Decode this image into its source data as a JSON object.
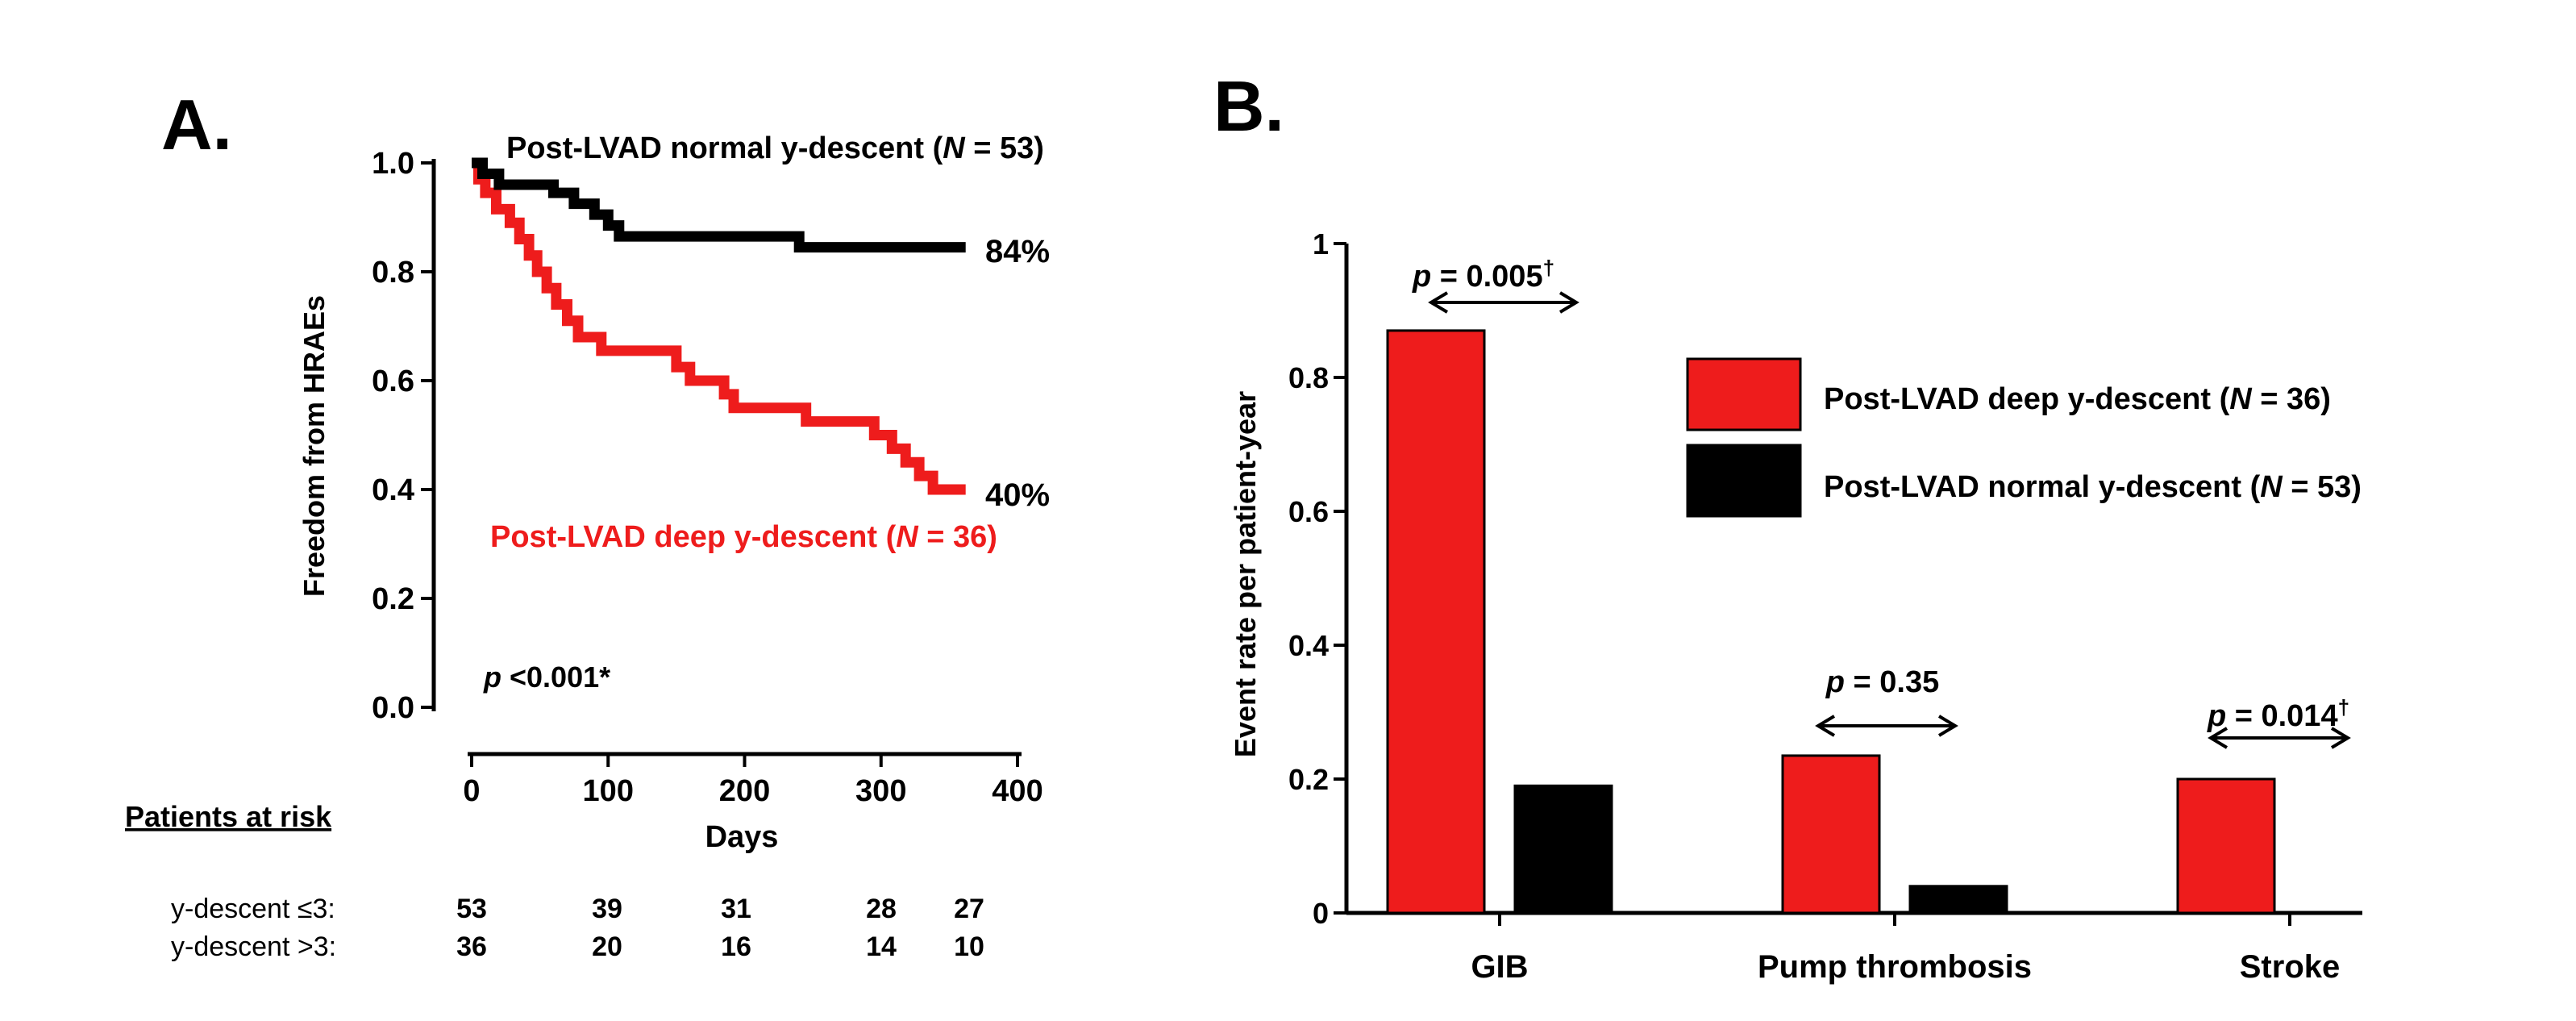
{
  "colors": {
    "deep": "#ee1c1c",
    "normal": "#000000",
    "axis": "#000000"
  },
  "panels": {
    "a": {
      "label": "A.",
      "normal_label": {
        "prefix": "Post-LVAD normal y-descent (",
        "italic": "N",
        "suffix": " = 53)"
      },
      "deep_label": {
        "prefix": "Post-LVAD deep y-descent (",
        "italic": "N",
        "suffix": " = 36)"
      },
      "pvalue": {
        "italic": "p",
        "rest": " <0.001*"
      },
      "risk_title": "Patients at risk",
      "risk_rows": [
        {
          "label": "y-descent ≤3:",
          "values": [
            "53",
            "39",
            "31",
            "28",
            "27"
          ]
        },
        {
          "label": "y-descent >3:",
          "values": [
            "36",
            "20",
            "16",
            "14",
            "10"
          ]
        }
      ]
    },
    "b": {
      "label": "B.",
      "legend": [
        {
          "prefix": "Post-LVAD deep y-descent (",
          "italic": "N",
          "suffix": " = 36)",
          "color": "#ee1c1c"
        },
        {
          "prefix": "Post-LVAD normal y-descent (",
          "italic": "N",
          "suffix": " = 53)",
          "color": "#000000"
        }
      ],
      "pvalues": [
        {
          "italic": "p",
          "rest": " = 0.005",
          "dagger": "†"
        },
        {
          "italic": "p",
          "rest": " = 0.35",
          "dagger": ""
        },
        {
          "italic": "p",
          "rest": " = 0.014",
          "dagger": "†"
        }
      ]
    }
  },
  "chart_data": [
    {
      "type": "line",
      "panel": "A",
      "title": "",
      "xlabel": "Days",
      "ylabel": "Freedom from HRAEs",
      "xlim": [
        0,
        400
      ],
      "ylim": [
        0,
        1.0
      ],
      "xticks": [
        "0",
        "100",
        "200",
        "300",
        "400"
      ],
      "yticks": [
        "0.0",
        "0.2",
        "0.4",
        "0.6",
        "0.8",
        "1.0"
      ],
      "grid": false,
      "series": [
        {
          "name": "Post-LVAD normal y-descent (N = 53)",
          "color": "#000000",
          "end_label": "84%",
          "points": [
            [
              0,
              1.0
            ],
            [
              8,
              1.0
            ],
            [
              8,
              0.98
            ],
            [
              20,
              0.98
            ],
            [
              20,
              0.96
            ],
            [
              60,
              0.96
            ],
            [
              60,
              0.945
            ],
            [
              75,
              0.945
            ],
            [
              75,
              0.925
            ],
            [
              90,
              0.925
            ],
            [
              90,
              0.905
            ],
            [
              100,
              0.905
            ],
            [
              100,
              0.885
            ],
            [
              108,
              0.885
            ],
            [
              108,
              0.865
            ],
            [
              240,
              0.865
            ],
            [
              240,
              0.845
            ],
            [
              362,
              0.845
            ]
          ]
        },
        {
          "name": "Post-LVAD deep y-descent (N = 36)",
          "color": "#ee1c1c",
          "end_label": "40%",
          "points": [
            [
              0,
              1.0
            ],
            [
              5,
              1.0
            ],
            [
              5,
              0.97
            ],
            [
              10,
              0.97
            ],
            [
              10,
              0.945
            ],
            [
              18,
              0.945
            ],
            [
              18,
              0.915
            ],
            [
              28,
              0.915
            ],
            [
              28,
              0.89
            ],
            [
              35,
              0.89
            ],
            [
              35,
              0.86
            ],
            [
              42,
              0.86
            ],
            [
              42,
              0.83
            ],
            [
              48,
              0.83
            ],
            [
              48,
              0.8
            ],
            [
              55,
              0.8
            ],
            [
              55,
              0.77
            ],
            [
              62,
              0.77
            ],
            [
              62,
              0.74
            ],
            [
              70,
              0.74
            ],
            [
              70,
              0.71
            ],
            [
              78,
              0.71
            ],
            [
              78,
              0.68
            ],
            [
              95,
              0.68
            ],
            [
              95,
              0.655
            ],
            [
              150,
              0.655
            ],
            [
              150,
              0.625
            ],
            [
              160,
              0.625
            ],
            [
              160,
              0.6
            ],
            [
              185,
              0.6
            ],
            [
              185,
              0.575
            ],
            [
              192,
              0.575
            ],
            [
              192,
              0.55
            ],
            [
              245,
              0.55
            ],
            [
              245,
              0.525
            ],
            [
              295,
              0.525
            ],
            [
              295,
              0.5
            ],
            [
              308,
              0.5
            ],
            [
              308,
              0.475
            ],
            [
              318,
              0.475
            ],
            [
              318,
              0.45
            ],
            [
              328,
              0.45
            ],
            [
              328,
              0.425
            ],
            [
              338,
              0.425
            ],
            [
              338,
              0.4
            ],
            [
              362,
              0.4
            ]
          ]
        }
      ]
    },
    {
      "type": "bar",
      "panel": "B",
      "title": "",
      "xlabel": "",
      "ylabel": "Event rate per patient-year",
      "ylim": [
        0,
        1
      ],
      "yticks": [
        "0",
        "0.2",
        "0.4",
        "0.6",
        "0.8",
        "1"
      ],
      "categories": [
        "GIB",
        "Pump thrombosis",
        "Stroke"
      ],
      "legend_position": "top-right",
      "series": [
        {
          "name": "Post-LVAD deep y-descent (N = 36)",
          "color": "#ee1c1c",
          "values": [
            0.87,
            0.235,
            0.2
          ]
        },
        {
          "name": "Post-LVAD normal y-descent (N = 53)",
          "color": "#000000",
          "values": [
            0.19,
            0.04,
            0
          ]
        }
      ]
    }
  ]
}
